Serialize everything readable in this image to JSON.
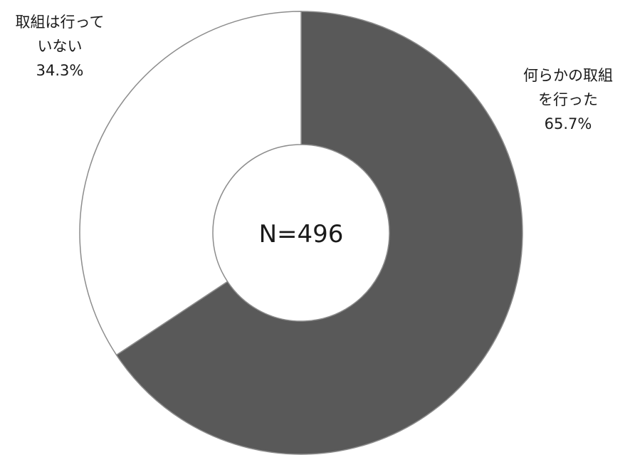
{
  "chart_data": {
    "type": "donut",
    "center_text": "N=496",
    "slices": [
      {
        "label_lines": [
          "何らかの取組",
          "を行った"
        ],
        "value": 65.7,
        "value_text": "65.7%",
        "color": "#595959"
      },
      {
        "label_lines": [
          "取組は行って",
          "いない"
        ],
        "value": 34.3,
        "value_text": "34.3%",
        "color": "#ffffff"
      }
    ],
    "start_angle_deg": 0,
    "direction": "clockwise",
    "stroke_color": "#8c8c8c"
  }
}
